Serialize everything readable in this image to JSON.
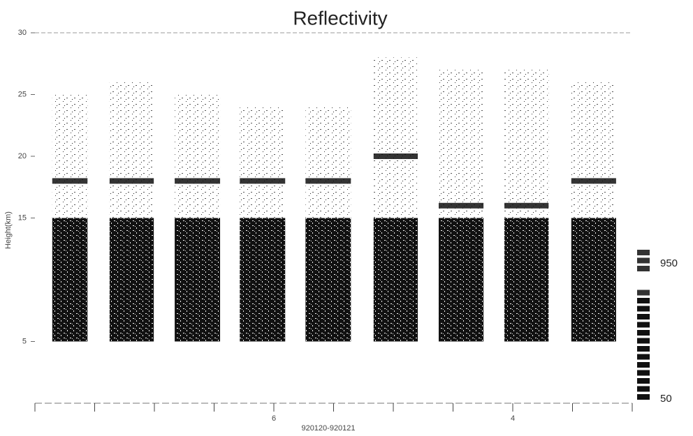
{
  "chart_data": {
    "type": "column-profile",
    "title": "Reflectivity",
    "y_label": "Height(km)",
    "x_label": "920120-920121",
    "xlim": [
      0,
      10
    ],
    "xticks": [
      0,
      1,
      2,
      3,
      4,
      5,
      6,
      7,
      8,
      9,
      10
    ],
    "xtick_labels": [
      {
        "value": 4,
        "label": "6"
      },
      {
        "value": 8,
        "label": "4"
      }
    ],
    "ylim": [
      0,
      30
    ],
    "yticks": [
      5,
      15,
      20,
      25,
      30
    ],
    "color": "#111111",
    "columns": {
      "x_start": [
        0.29,
        1.25,
        2.34,
        3.43,
        4.53,
        5.67,
        6.76,
        7.86,
        8.98
      ],
      "x_end": [
        0.88,
        1.99,
        3.1,
        4.19,
        5.29,
        6.41,
        7.51,
        8.6,
        9.73
      ],
      "base": [
        5,
        5,
        5,
        5,
        5,
        5,
        5,
        5,
        5
      ],
      "dense_top": [
        15,
        15,
        15,
        15,
        15,
        15,
        15,
        15,
        15
      ],
      "layer": [
        18,
        18,
        18,
        18,
        18,
        20,
        16,
        16,
        18
      ],
      "top": [
        25,
        26,
        25,
        24,
        24,
        28,
        27,
        27,
        26
      ]
    },
    "colorbar": {
      "clim": [
        0,
        1000
      ],
      "ticks": [
        950,
        50
      ]
    }
  }
}
